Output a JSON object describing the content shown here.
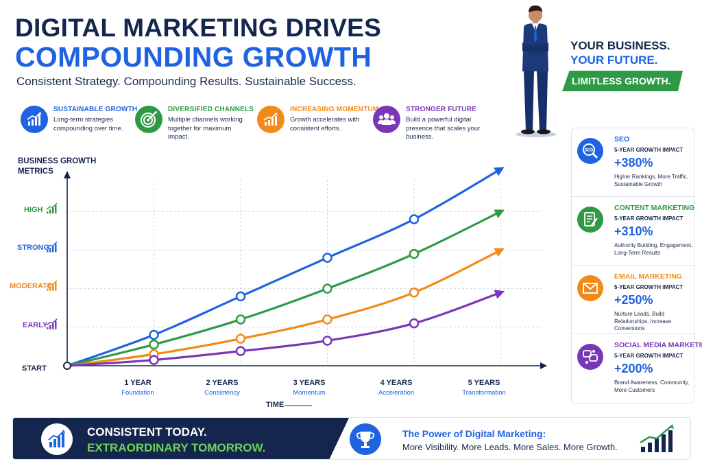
{
  "header": {
    "title_line1": "DIGITAL MARKETING DRIVES",
    "title_line2": "COMPOUNDING GROWTH",
    "subtitle": "Consistent Strategy. Compounding Results. Sustainable Success."
  },
  "features": [
    {
      "title": "SUSTAINABLE GROWTH",
      "desc": "Long-term strategies compounding over time.",
      "color": "#1f63e0",
      "icon": "growth-chart-icon"
    },
    {
      "title": "DIVERSIFIED CHANNELS",
      "desc": "Multiple channels working together for maximum impact.",
      "color": "#2f9a46",
      "icon": "target-icon"
    },
    {
      "title": "INCREASING MOMENTUM",
      "desc": "Growth accelerates with consistent efforts.",
      "color": "#f28a1a",
      "icon": "rising-chart-icon"
    },
    {
      "title": "STRONGER FUTURE",
      "desc": "Build a powerful digital presence that scales your business.",
      "color": "#7a36b8",
      "icon": "people-group-icon"
    }
  ],
  "tagline": {
    "line1": "YOUR BUSINESS.",
    "line2": "YOUR FUTURE.",
    "banner": "LIMITLESS GROWTH."
  },
  "chart_data": {
    "type": "line",
    "ylabel": "BUSINESS GROWTH METRICS",
    "xlabel": "TIME",
    "x_categories": [
      "START",
      "1 YEAR",
      "2 YEARS",
      "3 YEARS",
      "4 YEARS",
      "5 YEARS"
    ],
    "x_stages": [
      "",
      "Foundation",
      "Consistency",
      "Momentum",
      "Acceleration",
      "Transformation"
    ],
    "y_levels": [
      {
        "label": "START",
        "value": 0,
        "color": "#14264d"
      },
      {
        "label": "EARLY",
        "value": 1,
        "color": "#7a36b8"
      },
      {
        "label": "MODERATE",
        "value": 2,
        "color": "#f28a1a"
      },
      {
        "label": "STRONG",
        "value": 3,
        "color": "#1f63e0"
      },
      {
        "label": "HIGH",
        "value": 4,
        "color": "#2f9a46"
      }
    ],
    "ylim": [
      0,
      4.5
    ],
    "grid": true,
    "series": [
      {
        "name": "SEO",
        "color": "#1f63e0",
        "values": [
          0,
          0.8,
          1.8,
          2.8,
          3.8,
          5.1
        ]
      },
      {
        "name": "CONTENT MARKETING",
        "color": "#2f9a46",
        "values": [
          0,
          0.55,
          1.2,
          2.0,
          2.9,
          4.0
        ]
      },
      {
        "name": "EMAIL MARKETING",
        "color": "#f28a1a",
        "values": [
          0,
          0.3,
          0.7,
          1.2,
          1.9,
          3.0
        ]
      },
      {
        "name": "SOCIAL MEDIA MARKETING",
        "color": "#7a36b8",
        "values": [
          0,
          0.15,
          0.38,
          0.65,
          1.1,
          1.9
        ]
      }
    ]
  },
  "impact_cards": [
    {
      "name": "SEO",
      "impact_label": "5-YEAR GROWTH IMPACT",
      "value": "+380%",
      "desc": "Higher Rankings, More Traffic, Sustainable Growth",
      "color": "#1f63e0",
      "icon": "seo-magnifier-icon"
    },
    {
      "name": "CONTENT MARKETING",
      "impact_label": "5-YEAR GROWTH IMPACT",
      "value": "+310%",
      "desc": "Authority Building, Engagement, Long-Term Results",
      "color": "#2f9a46",
      "icon": "document-edit-icon"
    },
    {
      "name": "EMAIL MARKETING",
      "impact_label": "5-YEAR GROWTH IMPACT",
      "value": "+250%",
      "desc": "Nurture Leads, Build Relationships, Increase Conversions",
      "color": "#f28a1a",
      "icon": "envelope-icon"
    },
    {
      "name": "SOCIAL MEDIA MARKETING",
      "impact_label": "5-YEAR GROWTH IMPACT",
      "value": "+200%",
      "desc": "Brand Awareness, Community, More Customers",
      "color": "#7a36b8",
      "icon": "social-chat-icon"
    }
  ],
  "footer": {
    "line1": "CONSISTENT TODAY.",
    "line2": "EXTRAORDINARY TOMORROW.",
    "power_title": "The Power of Digital Marketing:",
    "power_desc": "More Visibility. More Leads. More Sales. More Growth."
  }
}
